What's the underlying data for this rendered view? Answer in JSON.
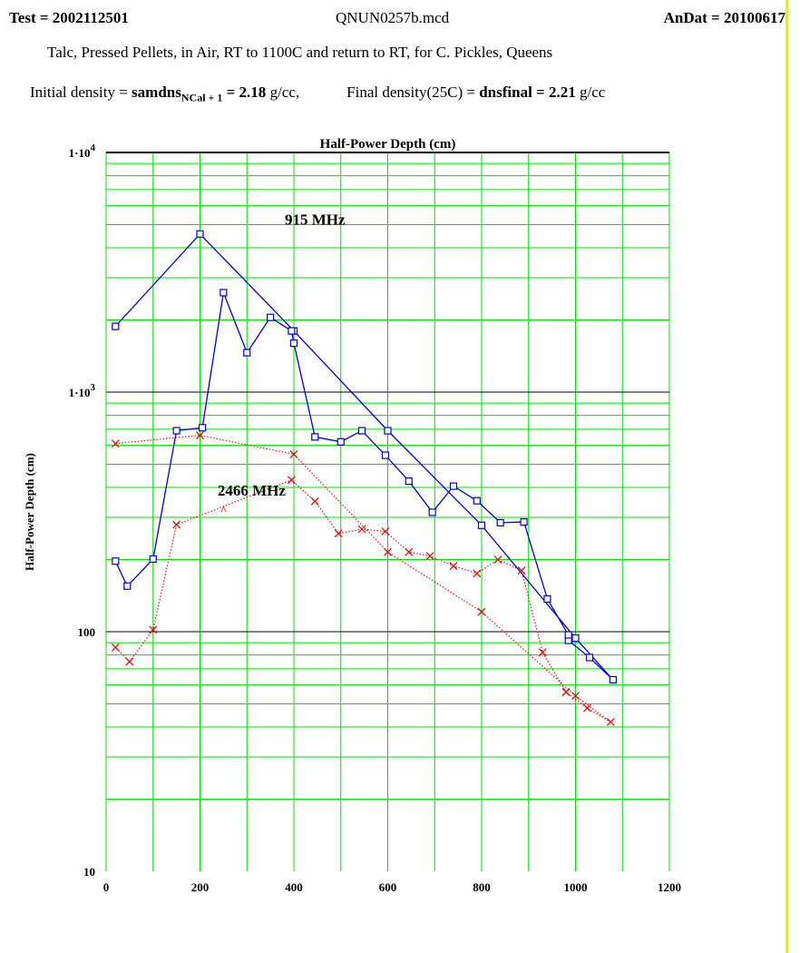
{
  "header": {
    "test": "Test = 2002112501",
    "file": "QNUN0257b.mcd",
    "andat": "AnDat = 20100617"
  },
  "subtitle": "Talc, Pressed Pellets, in Air, RT to 1100C and return to RT, for C. Pickles, Queens",
  "density": {
    "initial_label": "Initial density = ",
    "initial_var": "samdns",
    "initial_sub": "NCal + 1",
    "initial_eq": " = 2.18",
    "initial_unit": " g/cc,",
    "final_label": "Final density(25C) = ",
    "final_var": "dnsfinal = 2.21",
    "final_unit": " g/cc"
  },
  "colors": {
    "grid_minor": "#00dd00",
    "grid_major": "#000000",
    "series_915": "#0000cc",
    "series_2466": "#e01010",
    "side_bar": "#e6e64d"
  },
  "chart_data": {
    "type": "line",
    "title": "Half-Power Depth (cm)",
    "xlabel": "",
    "ylabel": "Half-Power Depth (cm)",
    "xlim": [
      0,
      1200
    ],
    "ylim": [
      10,
      10000
    ],
    "yscale": "log",
    "grid": true,
    "x_ticks": [
      "0",
      "200",
      "400",
      "600",
      "800",
      "1000",
      "1200"
    ],
    "x_tick_values": [
      0,
      200,
      400,
      600,
      800,
      1000,
      1200
    ],
    "y_ticks": [
      {
        "value": 10,
        "base": "10",
        "exp": ""
      },
      {
        "value": 100,
        "base": "100",
        "exp": ""
      },
      {
        "value": 1000,
        "base": "1·10",
        "exp": "3"
      },
      {
        "value": 10000,
        "base": "1·10",
        "exp": "4"
      }
    ],
    "annotations": [
      {
        "text": "915 MHz",
        "x": 445,
        "y": 5000
      },
      {
        "text": "2466 MHz",
        "x": 310,
        "y": 370
      },
      {
        "text": "^",
        "x": 250,
        "y": 310
      }
    ],
    "series": [
      {
        "name": "915 MHz",
        "marker": "square",
        "style": "solid",
        "x": [
          20,
          200,
          400,
          600,
          800,
          1000,
          1080,
          1030,
          985,
          985,
          940,
          890,
          840,
          790,
          740,
          695,
          645,
          595,
          545,
          500,
          445,
          400,
          395,
          350,
          300,
          250,
          205,
          150,
          100,
          45,
          20
        ],
        "y": [
          1880,
          4570,
          1800,
          690,
          278,
          94,
          63,
          78,
          92,
          97,
          137,
          287,
          285,
          352,
          405,
          315,
          425,
          545,
          690,
          620,
          650,
          1600,
          1800,
          2050,
          1460,
          2600,
          710,
          690,
          201,
          155,
          197
        ]
      },
      {
        "name": "2466 MHz",
        "marker": "x",
        "style": "dotted",
        "x": [
          20,
          200,
          400,
          600,
          800,
          1000,
          1075,
          1025,
          980,
          980,
          930,
          885,
          835,
          790,
          740,
          690,
          645,
          595,
          545,
          495,
          445,
          395,
          150,
          100,
          50,
          20
        ],
        "y": [
          610,
          660,
          550,
          215,
          121,
          54,
          42,
          48,
          56,
          56,
          82,
          180,
          200,
          175,
          188,
          207,
          215,
          262,
          268,
          257,
          350,
          430,
          280,
          102,
          75,
          86
        ]
      }
    ]
  }
}
